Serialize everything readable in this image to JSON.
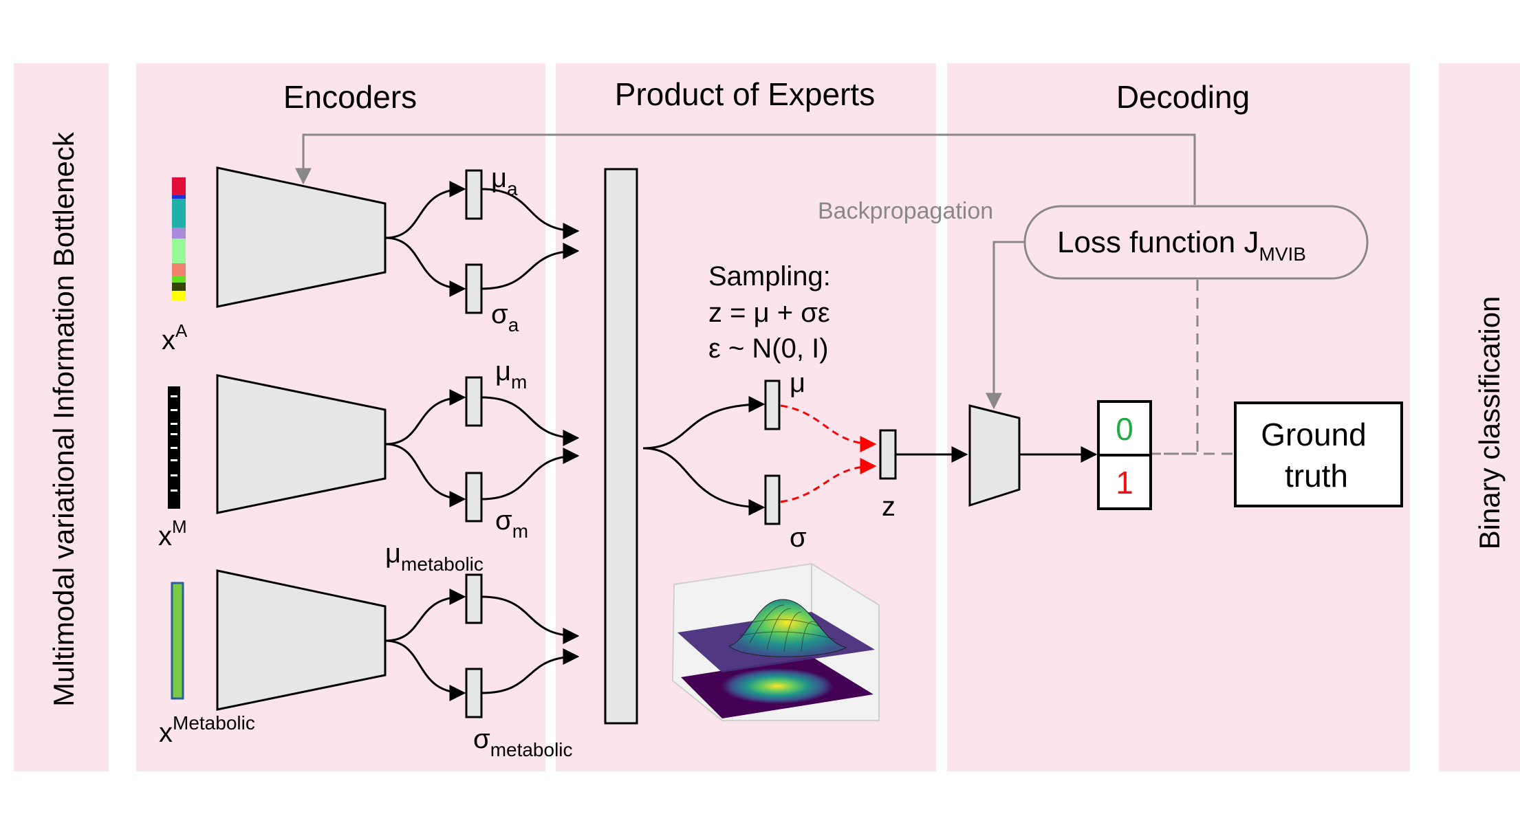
{
  "side_labels": {
    "left": "Multimodal variational Information Bottleneck",
    "right": "Binary classification"
  },
  "sections": {
    "encoders": "Encoders",
    "poe": "Product of Experts",
    "decoding": "Decoding"
  },
  "inputs": {
    "a": {
      "base": "x",
      "sup": "A"
    },
    "m": {
      "base": "x",
      "sup": "M"
    },
    "metabolic": {
      "base": "x",
      "sup": "Metabolic"
    }
  },
  "latents": {
    "mu_a": {
      "base": "μ",
      "sub": "a"
    },
    "sigma_a": {
      "base": "σ",
      "sub": "a"
    },
    "mu_m": {
      "base": "μ",
      "sub": "m"
    },
    "sigma_m": {
      "base": "σ",
      "sub": "m"
    },
    "mu_metabolic": {
      "base": "μ",
      "sub": "metabolic"
    },
    "sigma_metabolic": {
      "base": "σ",
      "sub": "metabolic"
    }
  },
  "sampling": {
    "line1": "Sampling:",
    "line2": "z = μ + σε",
    "line3": "ε ~ N(0, I)",
    "mu": "μ",
    "sigma": "σ",
    "z": "z"
  },
  "backprop": "Backpropagation",
  "loss": {
    "base": "Loss function J",
    "sub": "MVIB"
  },
  "outputs": {
    "zero": "0",
    "one": "1"
  },
  "ground_truth": {
    "line1": "Ground",
    "line2": "truth"
  },
  "colors": {
    "panel": "#fce4ec",
    "shape_fill": "#e6e6e6",
    "sample_arrow": "#ff0000",
    "class_zero": "#22aa44",
    "class_one": "#ee1111",
    "feedback": "#888888"
  }
}
